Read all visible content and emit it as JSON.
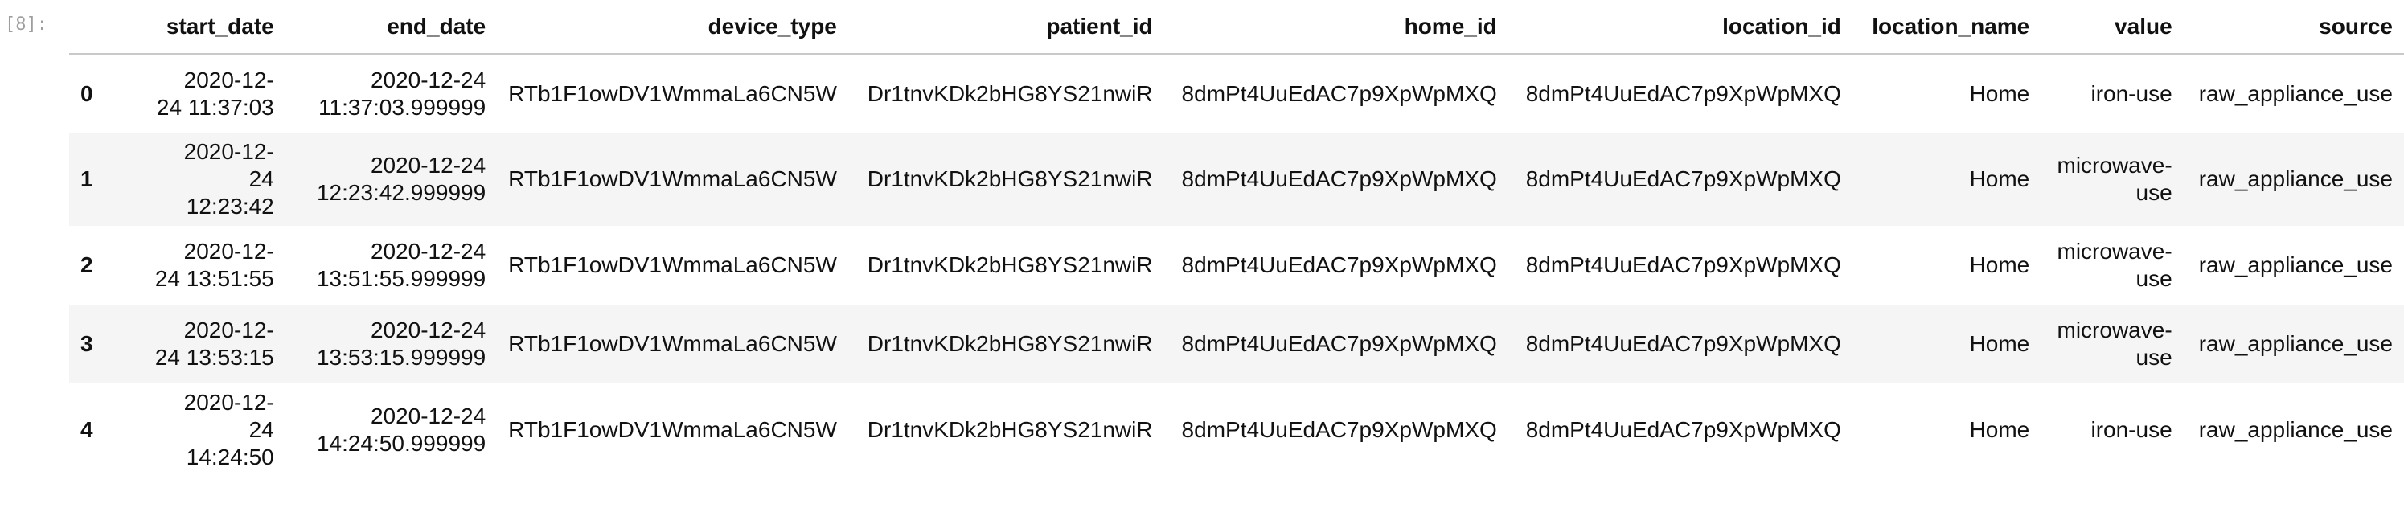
{
  "cell": {
    "prompt": "[8]:"
  },
  "table": {
    "columns": [
      "",
      "start_date",
      "end_date",
      "device_type",
      "patient_id",
      "home_id",
      "location_id",
      "location_name",
      "value",
      "source"
    ],
    "rows": [
      {
        "index": "0",
        "start_date_l1": "2020-12-",
        "start_date_l2": "24 11:37:03",
        "start_date_l3": "",
        "end_date_l1": "2020-12-24",
        "end_date_l2": "11:37:03.999999",
        "device_type": "RTb1F1owDV1WmmaLa6CN5W",
        "patient_id": "Dr1tnvKDk2bHG8YS21nwiR",
        "home_id": "8dmPt4UuEdAC7p9XpWpMXQ",
        "location_id": "8dmPt4UuEdAC7p9XpWpMXQ",
        "location_name": "Home",
        "value_l1": "iron-use",
        "value_l2": "",
        "source": "raw_appliance_use"
      },
      {
        "index": "1",
        "start_date_l1": "2020-12-",
        "start_date_l2": "24",
        "start_date_l3": "12:23:42",
        "end_date_l1": "2020-12-24",
        "end_date_l2": "12:23:42.999999",
        "device_type": "RTb1F1owDV1WmmaLa6CN5W",
        "patient_id": "Dr1tnvKDk2bHG8YS21nwiR",
        "home_id": "8dmPt4UuEdAC7p9XpWpMXQ",
        "location_id": "8dmPt4UuEdAC7p9XpWpMXQ",
        "location_name": "Home",
        "value_l1": "microwave-",
        "value_l2": "use",
        "source": "raw_appliance_use"
      },
      {
        "index": "2",
        "start_date_l1": "2020-12-",
        "start_date_l2": "24 13:51:55",
        "start_date_l3": "",
        "end_date_l1": "2020-12-24",
        "end_date_l2": "13:51:55.999999",
        "device_type": "RTb1F1owDV1WmmaLa6CN5W",
        "patient_id": "Dr1tnvKDk2bHG8YS21nwiR",
        "home_id": "8dmPt4UuEdAC7p9XpWpMXQ",
        "location_id": "8dmPt4UuEdAC7p9XpWpMXQ",
        "location_name": "Home",
        "value_l1": "microwave-",
        "value_l2": "use",
        "source": "raw_appliance_use"
      },
      {
        "index": "3",
        "start_date_l1": "2020-12-",
        "start_date_l2": "24 13:53:15",
        "start_date_l3": "",
        "end_date_l1": "2020-12-24",
        "end_date_l2": "13:53:15.999999",
        "device_type": "RTb1F1owDV1WmmaLa6CN5W",
        "patient_id": "Dr1tnvKDk2bHG8YS21nwiR",
        "home_id": "8dmPt4UuEdAC7p9XpWpMXQ",
        "location_id": "8dmPt4UuEdAC7p9XpWpMXQ",
        "location_name": "Home",
        "value_l1": "microwave-",
        "value_l2": "use",
        "source": "raw_appliance_use"
      },
      {
        "index": "4",
        "start_date_l1": "2020-12-",
        "start_date_l2": "24",
        "start_date_l3": "14:24:50",
        "end_date_l1": "2020-12-24",
        "end_date_l2": "14:24:50.999999",
        "device_type": "RTb1F1owDV1WmmaLa6CN5W",
        "patient_id": "Dr1tnvKDk2bHG8YS21nwiR",
        "home_id": "8dmPt4UuEdAC7p9XpWpMXQ",
        "location_id": "8dmPt4UuEdAC7p9XpWpMXQ",
        "location_name": "Home",
        "value_l1": "iron-use",
        "value_l2": "",
        "source": "raw_appliance_use"
      }
    ]
  }
}
